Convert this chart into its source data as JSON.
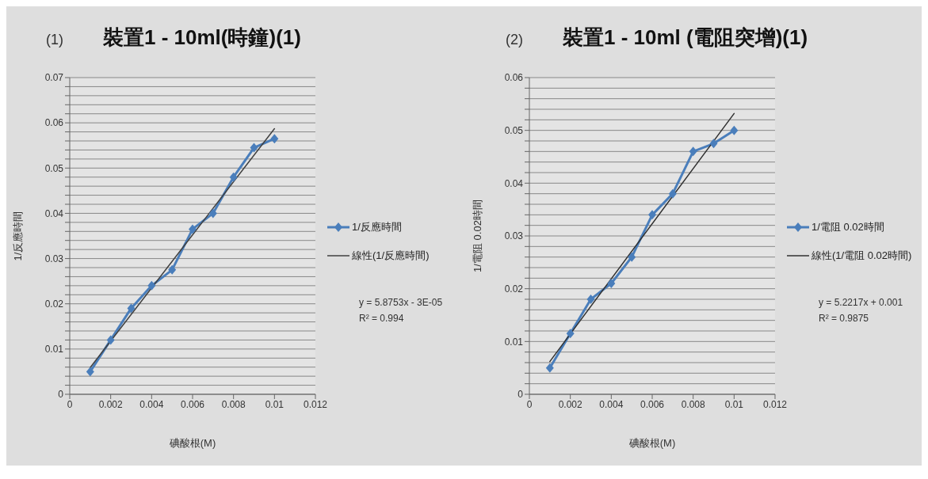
{
  "chart_data": [
    {
      "type": "line",
      "title": "裝置1 - 10ml(時鐘)(1)",
      "xlabel": "碘酸根(M)",
      "ylabel": "1/反應時間",
      "legend": "right",
      "grid": "y",
      "annotations": [
        "(1)",
        "y = 5.8753x - 3E-05",
        "R² = 0.994"
      ],
      "x": [
        0.001,
        0.002,
        0.003,
        0.004,
        0.005,
        0.006,
        0.007,
        0.008,
        0.009,
        0.01
      ],
      "series": [
        {
          "name": "1/反應時間",
          "color": "#4a7ebb",
          "marker": "diamond",
          "values": [
            0.005,
            0.012,
            0.019,
            0.024,
            0.0275,
            0.0365,
            0.04,
            0.048,
            0.0545,
            0.0565
          ]
        },
        {
          "name": "線性(1/反應時間)",
          "type": "line",
          "color": "#404040",
          "marker": "none",
          "x": [
            0.001,
            0.01
          ],
          "values": [
            0.0059,
            0.0587
          ]
        }
      ],
      "xlim": [
        0,
        0.012
      ],
      "xticks": [
        0,
        0.002,
        0.004,
        0.006,
        0.008,
        0.01,
        0.012
      ],
      "ylim": [
        0,
        0.07
      ],
      "yticks": [
        0,
        {
          "value": 0.002,
          "label": null
        },
        {
          "value": 0.004,
          "label": null
        },
        {
          "value": 0.006,
          "label": null
        },
        {
          "value": 0.008,
          "label": null
        },
        0.01,
        {
          "value": 0.012,
          "label": null
        },
        {
          "value": 0.014,
          "label": null
        },
        {
          "value": 0.016,
          "label": null
        },
        {
          "value": 0.018,
          "label": null
        },
        0.02,
        {
          "value": 0.022,
          "label": null
        },
        {
          "value": 0.024,
          "label": null
        },
        {
          "value": 0.026,
          "label": null
        },
        {
          "value": 0.028,
          "label": null
        },
        0.03,
        {
          "value": 0.032,
          "label": null
        },
        {
          "value": 0.034,
          "label": null
        },
        {
          "value": 0.036,
          "label": null
        },
        {
          "value": 0.038,
          "label": null
        },
        0.04,
        {
          "value": 0.042,
          "label": null
        },
        {
          "value": 0.044,
          "label": null
        },
        {
          "value": 0.046,
          "label": null
        },
        {
          "value": 0.048,
          "label": null
        },
        0.05,
        {
          "value": 0.052,
          "label": null
        },
        {
          "value": 0.054,
          "label": null
        },
        {
          "value": 0.056,
          "label": null
        },
        {
          "value": 0.058,
          "label": null
        },
        0.06,
        {
          "value": 0.062,
          "label": null
        },
        {
          "value": 0.064,
          "label": null
        },
        {
          "value": 0.066,
          "label": null
        },
        {
          "value": 0.068,
          "label": null
        },
        0.07
      ]
    },
    {
      "type": "line",
      "title": "裝置1 - 10ml (電阻突增)(1)",
      "xlabel": "碘酸根(M)",
      "ylabel": "1/電阻 0.02時間",
      "legend": "right",
      "grid": "y",
      "annotations": [
        "(2)",
        "y = 5.2217x + 0.001",
        "R² = 0.9875"
      ],
      "x": [
        0.001,
        0.002,
        0.003,
        0.004,
        0.005,
        0.006,
        0.007,
        0.008,
        0.009,
        0.01
      ],
      "series": [
        {
          "name": "1/電阻 0.02時間",
          "color": "#4a7ebb",
          "marker": "diamond",
          "values": [
            0.005,
            0.0115,
            0.018,
            0.021,
            0.026,
            0.034,
            0.038,
            0.046,
            0.0475,
            0.05
          ]
        },
        {
          "name": "線性(1/電阻 0.02時間)",
          "type": "line",
          "color": "#303030",
          "marker": "none",
          "x": [
            0.001,
            0.01
          ],
          "values": [
            0.0062,
            0.0532
          ]
        }
      ],
      "xlim": [
        0,
        0.012
      ],
      "xticks": [
        0,
        0.002,
        0.004,
        0.006,
        0.008,
        0.01,
        0.012
      ],
      "ylim": [
        0,
        0.06
      ],
      "yticks": [
        0,
        {
          "value": 0.002,
          "label": null
        },
        {
          "value": 0.004,
          "label": null
        },
        {
          "value": 0.006,
          "label": null
        },
        {
          "value": 0.008,
          "label": null
        },
        0.01,
        {
          "value": 0.012,
          "label": null
        },
        {
          "value": 0.014,
          "label": null
        },
        {
          "value": 0.016,
          "label": null
        },
        {
          "value": 0.018,
          "label": null
        },
        0.02,
        {
          "value": 0.022,
          "label": null
        },
        {
          "value": 0.024,
          "label": null
        },
        {
          "value": 0.026,
          "label": null
        },
        {
          "value": 0.028,
          "label": null
        },
        0.03,
        {
          "value": 0.032,
          "label": null
        },
        {
          "value": 0.034,
          "label": null
        },
        {
          "value": 0.036,
          "label": null
        },
        {
          "value": 0.038,
          "label": null
        },
        0.04,
        {
          "value": 0.042,
          "label": null
        },
        {
          "value": 0.044,
          "label": null
        },
        {
          "value": 0.046,
          "label": null
        },
        {
          "value": 0.048,
          "label": null
        },
        0.05,
        {
          "value": 0.052,
          "label": null
        },
        {
          "value": 0.054,
          "label": null
        },
        {
          "value": 0.056,
          "label": null
        },
        {
          "value": 0.058,
          "label": null
        },
        0.06
      ]
    }
  ]
}
